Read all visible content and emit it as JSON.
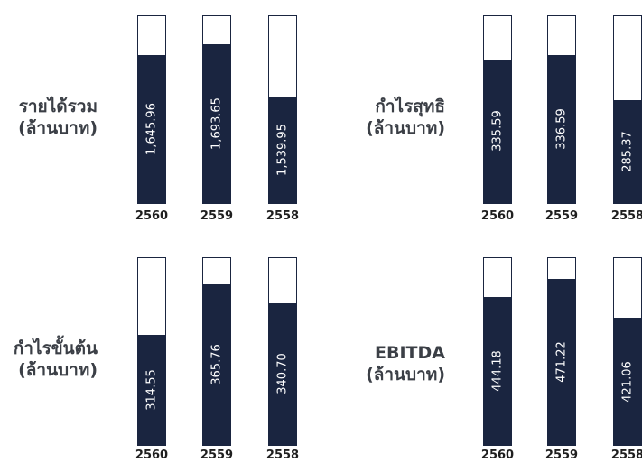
{
  "chart_data": [
    {
      "type": "bar",
      "title": "รายได้รวม",
      "unit": "(ล้านบาท)",
      "categories": [
        "2560",
        "2559",
        "2558"
      ],
      "values": [
        1645.96,
        1693.65,
        1539.95
      ],
      "labels": [
        "1,645.96",
        "1,693.65",
        "1,539.95"
      ],
      "color": "#1a2540"
    },
    {
      "type": "bar",
      "title": "กำไรสุทธิ",
      "unit": "(ล้านบาท)",
      "categories": [
        "2560",
        "2559",
        "2558"
      ],
      "values": [
        335.59,
        336.59,
        285.37
      ],
      "labels": [
        "335.59",
        "336.59",
        "285.37"
      ],
      "color": "#1a2540"
    },
    {
      "type": "bar",
      "title": "กำไรขั้นต้น",
      "unit": "(ล้านบาท)",
      "categories": [
        "2560",
        "2559",
        "2558"
      ],
      "values": [
        314.55,
        365.76,
        340.7
      ],
      "labels": [
        "314.55",
        "365.76",
        "340.70"
      ],
      "color": "#1a2540"
    },
    {
      "type": "bar",
      "title": "EBITDA",
      "unit": "(ล้านบาท)",
      "categories": [
        "2560",
        "2559",
        "2558"
      ],
      "values": [
        444.18,
        471.22,
        421.06
      ],
      "labels": [
        "444.18",
        "471.22",
        "421.06"
      ],
      "color": "#1a2540"
    }
  ]
}
